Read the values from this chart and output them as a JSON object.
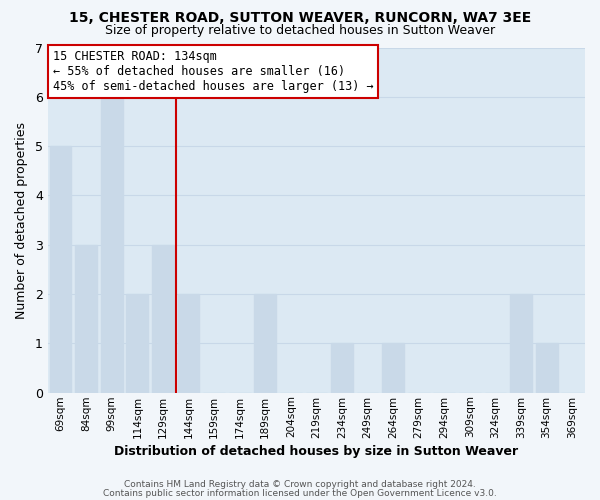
{
  "title": "15, CHESTER ROAD, SUTTON WEAVER, RUNCORN, WA7 3EE",
  "subtitle": "Size of property relative to detached houses in Sutton Weaver",
  "xlabel": "Distribution of detached houses by size in Sutton Weaver",
  "ylabel": "Number of detached properties",
  "bar_labels": [
    "69sqm",
    "84sqm",
    "99sqm",
    "114sqm",
    "129sqm",
    "144sqm",
    "159sqm",
    "174sqm",
    "189sqm",
    "204sqm",
    "219sqm",
    "234sqm",
    "249sqm",
    "264sqm",
    "279sqm",
    "294sqm",
    "309sqm",
    "324sqm",
    "339sqm",
    "354sqm",
    "369sqm"
  ],
  "bar_values": [
    5,
    3,
    6,
    2,
    3,
    2,
    0,
    0,
    2,
    0,
    0,
    1,
    0,
    1,
    0,
    0,
    0,
    0,
    2,
    1,
    0
  ],
  "bar_color": "#c9d9e8",
  "reference_line_x": 4.5,
  "annotation_title": "15 CHESTER ROAD: 134sqm",
  "annotation_line1": "← 55% of detached houses are smaller (16)",
  "annotation_line2": "45% of semi-detached houses are larger (13) →",
  "annotation_box_color": "#ffffff",
  "annotation_box_edgecolor": "#cc0000",
  "vline_color": "#cc0000",
  "ylim": [
    0,
    7
  ],
  "yticks": [
    0,
    1,
    2,
    3,
    4,
    5,
    6,
    7
  ],
  "grid_color": "#c8d8e8",
  "plot_bg_color": "#dce9f3",
  "fig_bg_color": "#f2f6fa",
  "footer_line1": "Contains HM Land Registry data © Crown copyright and database right 2024.",
  "footer_line2": "Contains public sector information licensed under the Open Government Licence v3.0."
}
